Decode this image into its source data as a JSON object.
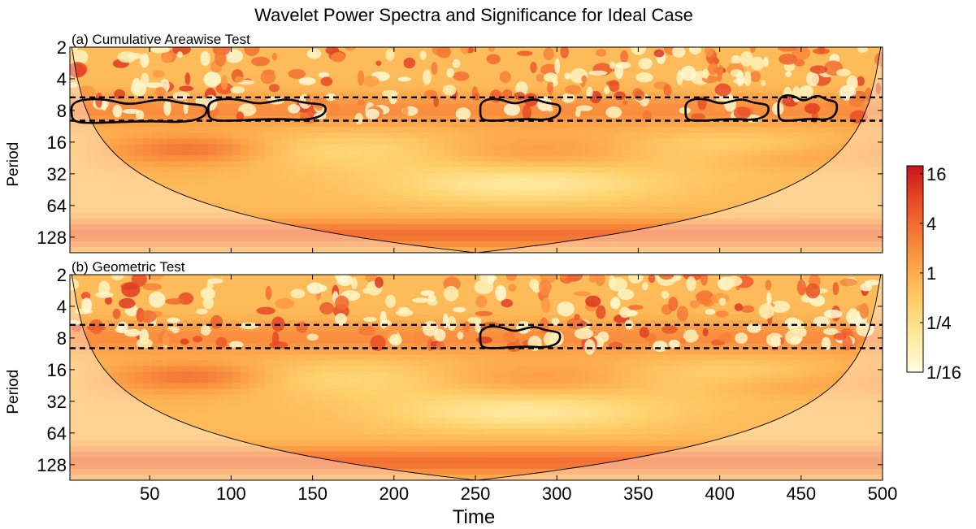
{
  "chart_data": {
    "type": "heatmap",
    "title": "Wavelet Power Spectra and Significance for Ideal Case",
    "xlabel": "Time",
    "ylabel": "Period",
    "xlim": [
      1,
      500
    ],
    "ylim": [
      2,
      180
    ],
    "y_scale": "log2",
    "x_ticks": [
      50,
      100,
      150,
      200,
      250,
      300,
      350,
      400,
      450,
      500
    ],
    "y_ticks": [
      "2",
      "4",
      "8",
      "16",
      "32",
      "64",
      "128"
    ],
    "y_tick_values": [
      2,
      4,
      8,
      16,
      32,
      64,
      128
    ],
    "colormap": [
      "#fffde0",
      "#ffeaa0",
      "#fed06a",
      "#fda84a",
      "#f57a36",
      "#e84a26",
      "#c8141c"
    ],
    "colorbar": {
      "scale": "log2",
      "range": [
        0.0625,
        20
      ],
      "ticks": [
        "1/16",
        "1/4",
        "1",
        "4",
        "16"
      ],
      "tick_values": [
        0.0625,
        0.25,
        1,
        4,
        16
      ]
    },
    "cone_of_influence": true,
    "dashed_band_periods": [
      6,
      10
    ],
    "panels": [
      {
        "label": "(a) Cumulative Areawise Test",
        "significant_regions": [
          {
            "x": [
              1,
              85
            ],
            "period": [
              6,
              10.5
            ]
          },
          {
            "x": [
              85,
              158
            ],
            "period": [
              6,
              10
            ]
          },
          {
            "x": [
              252,
              302
            ],
            "period": [
              6,
              10
            ]
          },
          {
            "x": [
              378,
              430
            ],
            "period": [
              6,
              10
            ]
          },
          {
            "x": [
              435,
              472
            ],
            "period": [
              5.5,
              10
            ]
          }
        ]
      },
      {
        "label": "(b) Geometric Test",
        "significant_regions": [
          {
            "x": [
              252,
              302
            ],
            "period": [
              6,
              10
            ]
          }
        ]
      }
    ]
  }
}
